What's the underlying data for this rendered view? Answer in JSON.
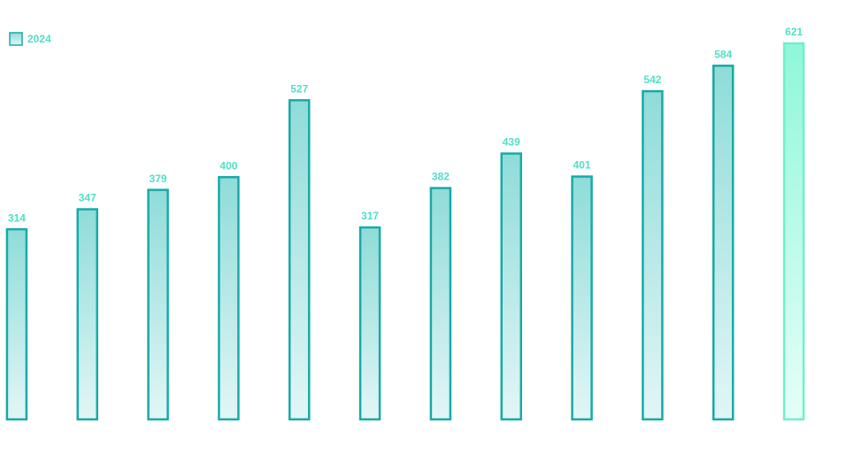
{
  "chart_data": {
    "type": "bar",
    "series": [
      {
        "name": "2024",
        "values": [
          314,
          347,
          379,
          400,
          527,
          317,
          382,
          439,
          401,
          542,
          584,
          621
        ],
        "colors": [
          "#17aaa8",
          "#17aaa8",
          "#17aaa8",
          "#17aaa8",
          "#17aaa8",
          "#17aaa8",
          "#17aaa8",
          "#17aaa8",
          "#17aaa8",
          "#17aaa8",
          "#17aaa8",
          "#6ff0cc"
        ]
      }
    ],
    "ylim": [
      0,
      621
    ]
  }
}
